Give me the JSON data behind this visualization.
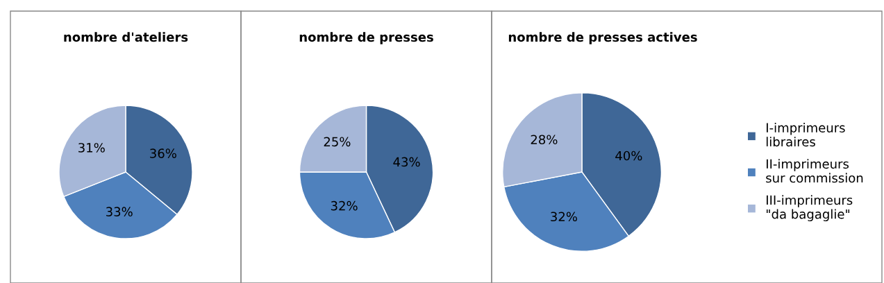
{
  "chart_data": [
    {
      "type": "pie",
      "title": "nombre d'ateliers",
      "categories": [
        null,
        null,
        null
      ],
      "values": [
        36,
        33,
        31
      ],
      "colors": [
        "#3f6797",
        "#4f81bd",
        "#a6b7d8"
      ],
      "value_labels": [
        "36%",
        "33%",
        "31%"
      ]
    },
    {
      "type": "pie",
      "title": "nombre de presses",
      "categories": [
        null,
        null,
        null
      ],
      "values": [
        43,
        32,
        25
      ],
      "colors": [
        "#3f6797",
        "#4f81bd",
        "#a6b7d8"
      ],
      "value_labels": [
        "43%",
        "32%",
        "25%"
      ]
    },
    {
      "type": "pie",
      "title": "nombre de presses actives",
      "categories": [
        "I-imprimeurs\nlibraires",
        "II-imprimeurs\nsur commission",
        "III-imprimeurs\n\"da bagaglie\""
      ],
      "values": [
        40,
        32,
        28
      ],
      "colors": [
        "#3f6797",
        "#4f81bd",
        "#a6b7d8"
      ],
      "value_labels": [
        "40%",
        "32%",
        "28%"
      ],
      "legend": "right"
    }
  ]
}
